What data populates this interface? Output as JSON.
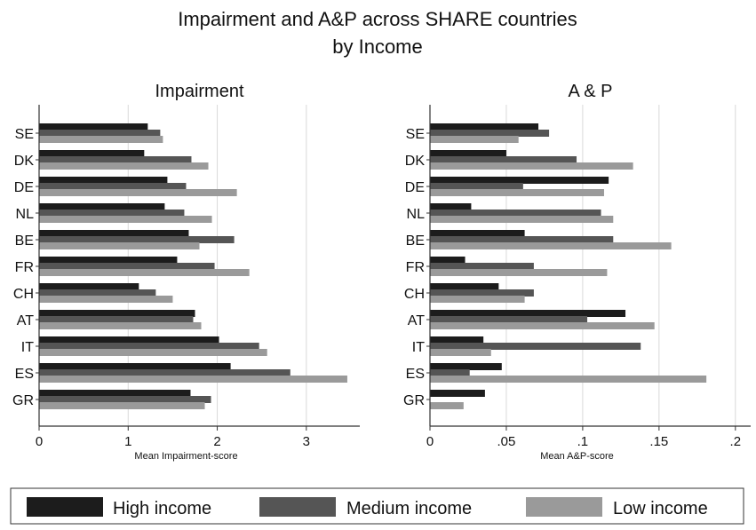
{
  "figure": {
    "title_line1": "Impairment and A&P across SHARE countries",
    "title_line2": "by Income"
  },
  "colors": {
    "high": "#1c1c1c",
    "medium": "#555555",
    "low": "#9a9a9a",
    "grid": "#d9d9d9",
    "axis": "#333333"
  },
  "legend": {
    "items": [
      {
        "label": "High income",
        "color": "#1c1c1c"
      },
      {
        "label": "Medium income",
        "color": "#555555"
      },
      {
        "label": "Low income",
        "color": "#9a9a9a"
      }
    ],
    "placement": "bottom"
  },
  "chart_data": [
    {
      "type": "bar",
      "orientation": "horizontal",
      "title": "Impairment",
      "xlabel": "Mean Impairment-score",
      "ylabel": "",
      "xlim": [
        0,
        3.6
      ],
      "xticks": [
        0,
        1,
        2,
        3
      ],
      "xtick_labels": [
        "0",
        "1",
        "2",
        "3"
      ],
      "grid": true,
      "categories": [
        "SE",
        "DK",
        "DE",
        "NL",
        "BE",
        "FR",
        "CH",
        "AT",
        "IT",
        "ES",
        "GR"
      ],
      "series": [
        {
          "name": "High income",
          "values": [
            1.22,
            1.18,
            1.44,
            1.41,
            1.68,
            1.55,
            1.12,
            1.75,
            2.02,
            2.15,
            1.7
          ]
        },
        {
          "name": "Medium income",
          "values": [
            1.36,
            1.71,
            1.65,
            1.63,
            2.19,
            1.97,
            1.31,
            1.73,
            2.47,
            2.82,
            1.93
          ]
        },
        {
          "name": "Low income",
          "values": [
            1.39,
            1.9,
            2.22,
            1.94,
            1.8,
            2.36,
            1.5,
            1.82,
            2.56,
            3.46,
            1.86
          ]
        }
      ]
    },
    {
      "type": "bar",
      "orientation": "horizontal",
      "title": "A & P",
      "xlabel": "Mean A&P-score",
      "ylabel": "",
      "xlim": [
        0,
        0.21
      ],
      "xticks": [
        0,
        0.05,
        0.1,
        0.15,
        0.2
      ],
      "xtick_labels": [
        "0",
        ".05",
        ".1",
        ".15",
        ".2"
      ],
      "grid": true,
      "categories": [
        "SE",
        "DK",
        "DE",
        "NL",
        "BE",
        "FR",
        "CH",
        "AT",
        "IT",
        "ES",
        "GR"
      ],
      "series": [
        {
          "name": "High income",
          "values": [
            0.071,
            0.05,
            0.117,
            0.027,
            0.062,
            0.023,
            0.045,
            0.128,
            0.035,
            0.047,
            0.036
          ]
        },
        {
          "name": "Medium income",
          "values": [
            0.078,
            0.096,
            0.061,
            0.112,
            0.12,
            0.068,
            0.068,
            0.103,
            0.138,
            0.026,
            0.0
          ]
        },
        {
          "name": "Low income",
          "values": [
            0.058,
            0.133,
            0.114,
            0.12,
            0.158,
            0.116,
            0.062,
            0.147,
            0.04,
            0.181,
            0.022
          ]
        }
      ]
    }
  ]
}
